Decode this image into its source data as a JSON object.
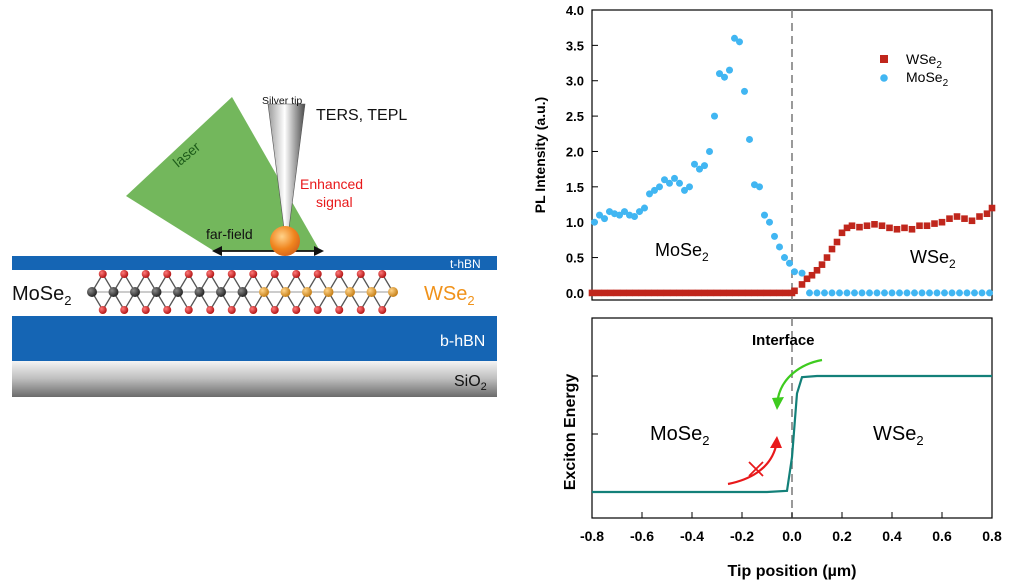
{
  "schematic": {
    "tip_label": "Silver tip",
    "technique": "TERS, TEPL",
    "laser": "laser",
    "enhanced_line1": "Enhanced",
    "enhanced_line2": "signal",
    "far_field": "far-field",
    "layer_top": "t-hBN",
    "left_material": "MoSe",
    "left_sub": "2",
    "right_material": "WSe",
    "right_sub": "2",
    "layer_bottom": "b-hBN",
    "substrate": "SiO",
    "substrate_sub": "2",
    "colors": {
      "laser": "#67b14e",
      "hbn": "#1565b4",
      "enhanced": "#e8191b",
      "wse2": "#f0921a",
      "mo": "#3a3a3a",
      "w": "#d08518",
      "se": "#cc1f1f"
    }
  },
  "chart_data": [
    {
      "type": "scatter",
      "ylabel": "PL Intensity (a.u.)",
      "xlim": [
        -0.8,
        0.8
      ],
      "ylim": [
        -0.1,
        4.0
      ],
      "yticks": [
        "0.0",
        "0.5",
        "1.0",
        "1.5",
        "2.0",
        "2.5",
        "3.0",
        "3.5",
        "4.0"
      ],
      "region_left": {
        "text": "MoSe",
        "sub": "2"
      },
      "region_right": {
        "text": "WSe",
        "sub": "2"
      },
      "legend_position": "top-right",
      "series": [
        {
          "name": "WSe",
          "name_sub": "2",
          "marker": "square",
          "color": "#c0261c",
          "x": [
            -0.8,
            -0.775,
            -0.75,
            -0.725,
            -0.7,
            -0.675,
            -0.65,
            -0.625,
            -0.6,
            -0.575,
            -0.55,
            -0.525,
            -0.5,
            -0.475,
            -0.45,
            -0.425,
            -0.4,
            -0.375,
            -0.35,
            -0.325,
            -0.3,
            -0.275,
            -0.25,
            -0.225,
            -0.2,
            -0.175,
            -0.15,
            -0.125,
            -0.1,
            -0.075,
            -0.05,
            -0.025,
            0.0,
            0.01,
            0.04,
            0.06,
            0.08,
            0.1,
            0.12,
            0.14,
            0.16,
            0.18,
            0.2,
            0.22,
            0.24,
            0.27,
            0.3,
            0.33,
            0.36,
            0.39,
            0.42,
            0.45,
            0.48,
            0.51,
            0.54,
            0.57,
            0.6,
            0.63,
            0.66,
            0.69,
            0.72,
            0.75,
            0.78,
            0.8
          ],
          "y": [
            0,
            0,
            0,
            0,
            0,
            0,
            0,
            0,
            0,
            0,
            0,
            0,
            0,
            0,
            0,
            0,
            0,
            0,
            0,
            0,
            0,
            0,
            0,
            0,
            0,
            0,
            0,
            0,
            0,
            0,
            0,
            0,
            0,
            0.03,
            0.12,
            0.2,
            0.25,
            0.32,
            0.4,
            0.5,
            0.62,
            0.72,
            0.85,
            0.92,
            0.95,
            0.93,
            0.95,
            0.97,
            0.95,
            0.92,
            0.9,
            0.92,
            0.9,
            0.95,
            0.95,
            0.98,
            1.0,
            1.05,
            1.08,
            1.05,
            1.02,
            1.08,
            1.12,
            1.2
          ]
        },
        {
          "name": "MoSe",
          "name_sub": "2",
          "marker": "circle",
          "color": "#41b6f2",
          "x": [
            -0.79,
            -0.77,
            -0.75,
            -0.73,
            -0.71,
            -0.69,
            -0.67,
            -0.65,
            -0.63,
            -0.61,
            -0.59,
            -0.57,
            -0.55,
            -0.53,
            -0.51,
            -0.49,
            -0.47,
            -0.45,
            -0.43,
            -0.41,
            -0.39,
            -0.37,
            -0.35,
            -0.33,
            -0.31,
            -0.29,
            -0.27,
            -0.25,
            -0.23,
            -0.21,
            -0.19,
            -0.17,
            -0.15,
            -0.13,
            -0.11,
            -0.09,
            -0.07,
            -0.05,
            -0.03,
            -0.01,
            0.01,
            0.04,
            0.07,
            0.1,
            0.13,
            0.16,
            0.19,
            0.22,
            0.25,
            0.28,
            0.31,
            0.34,
            0.37,
            0.4,
            0.43,
            0.46,
            0.49,
            0.52,
            0.55,
            0.58,
            0.61,
            0.64,
            0.67,
            0.7,
            0.73,
            0.76,
            0.79
          ],
          "y": [
            1.0,
            1.1,
            1.05,
            1.15,
            1.12,
            1.1,
            1.15,
            1.1,
            1.08,
            1.15,
            1.2,
            1.4,
            1.45,
            1.5,
            1.6,
            1.55,
            1.62,
            1.55,
            1.45,
            1.5,
            1.82,
            1.75,
            1.8,
            2.0,
            2.5,
            3.1,
            3.05,
            3.15,
            3.6,
            3.55,
            2.85,
            2.17,
            1.53,
            1.5,
            1.1,
            1.0,
            0.8,
            0.65,
            0.5,
            0.42,
            0.3,
            0.28,
            0,
            0,
            0,
            0,
            0,
            0,
            0,
            0,
            0,
            0,
            0,
            0,
            0,
            0,
            0,
            0,
            0,
            0,
            0,
            0,
            0,
            0,
            0,
            0,
            0
          ]
        }
      ]
    },
    {
      "type": "line",
      "xlabel": "Tip position (µm)",
      "ylabel": "Exciton Energy",
      "xlim": [
        -0.8,
        0.8
      ],
      "xticks": [
        "-0.8",
        "-0.6",
        "-0.4",
        "-0.2",
        "0.0",
        "0.2",
        "0.4",
        "0.6",
        "0.8"
      ],
      "annotation": "Interface",
      "region_left": {
        "text": "MoSe",
        "sub": "2"
      },
      "region_right": {
        "text": "WSe",
        "sub": "2"
      },
      "line_color": "#138079",
      "arrow_down_color": "#3ecb1f",
      "arrow_up_color": "#e8191b",
      "series": [
        {
          "name": "",
          "x": [
            -0.8,
            -0.1,
            -0.02,
            0.0,
            0.02,
            0.04,
            0.1,
            0.8
          ],
          "y": [
            0,
            0,
            0.01,
            0.3,
            0.85,
            0.99,
            1.0,
            1.0
          ]
        }
      ]
    }
  ]
}
